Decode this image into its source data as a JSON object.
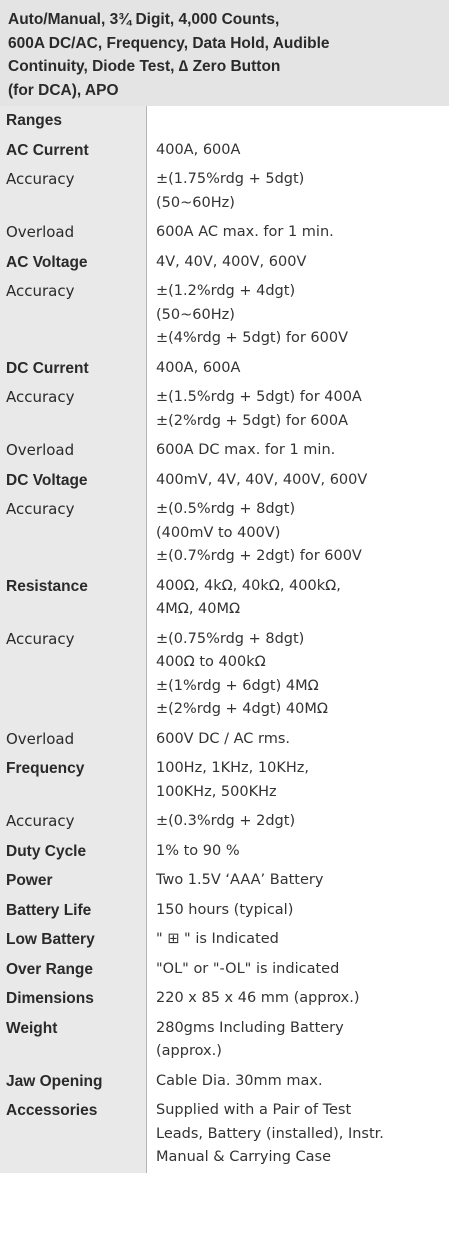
{
  "header": {
    "lines": [
      "Auto/Manual, 3¾ Digit, 4,000 Counts,",
      "600A DC/AC, Frequency, Data Hold, Audible",
      "Continuity, Diode Test, ∆ Zero Button",
      "(for DCA), APO"
    ]
  },
  "ranges": "Ranges",
  "sections": [
    {
      "title": "AC Current",
      "lines": [
        "400A, 600A"
      ],
      "sub": [
        {
          "label": "Accuracy",
          "lines": [
            "±(1.75%rdg + 5dgt)",
            "(50~60Hz)"
          ]
        },
        {
          "label": "Overload",
          "lines": [
            "600A AC max. for 1 min."
          ]
        }
      ]
    },
    {
      "title": "AC Voltage",
      "lines": [
        "4V, 40V, 400V, 600V"
      ],
      "sub": [
        {
          "label": "Accuracy",
          "lines": [
            "±(1.2%rdg + 4dgt)",
            "(50~60Hz)",
            "±(4%rdg + 5dgt) for 600V"
          ]
        }
      ]
    },
    {
      "title": "DC Current",
      "lines": [
        "400A, 600A"
      ],
      "sub": [
        {
          "label": "Accuracy",
          "lines": [
            "±(1.5%rdg + 5dgt) for 400A",
            "±(2%rdg + 5dgt) for 600A"
          ]
        },
        {
          "label": "Overload",
          "lines": [
            "600A DC max. for 1 min."
          ]
        }
      ]
    },
    {
      "title": "DC Voltage",
      "lines": [
        "400mV, 4V, 40V, 400V, 600V"
      ],
      "sub": [
        {
          "label": "Accuracy",
          "lines": [
            "±(0.5%rdg + 8dgt)",
            "(400mV to 400V)",
            "±(0.7%rdg + 2dgt) for 600V"
          ]
        }
      ]
    },
    {
      "title": "Resistance",
      "lines": [
        "400Ω, 4kΩ, 40kΩ, 400kΩ,",
        "4MΩ, 40MΩ"
      ],
      "sub": [
        {
          "label": "Accuracy",
          "lines": [
            "±(0.75%rdg + 8dgt)",
            "400Ω to 400kΩ",
            "±(1%rdg + 6dgt) 4MΩ",
            "±(2%rdg + 4dgt) 40MΩ"
          ]
        },
        {
          "label": "Overload",
          "lines": [
            "600V DC / AC rms."
          ]
        }
      ]
    },
    {
      "title": "Frequency",
      "lines": [
        "100Hz, 1KHz, 10KHz,",
        "100KHz, 500KHz"
      ],
      "sub": [
        {
          "label": "Accuracy",
          "lines": [
            "±(0.3%rdg + 2dgt)"
          ]
        }
      ]
    },
    {
      "title": "Duty Cycle",
      "lines": [
        "1% to 90 %"
      ],
      "sub": []
    },
    {
      "title": "Power",
      "lines": [
        "Two 1.5V ‘AAA’ Battery"
      ],
      "sub": []
    },
    {
      "title": "Battery Life",
      "lines": [
        "150 hours (typical)"
      ],
      "sub": []
    },
    {
      "title": "Low Battery",
      "lines": [
        "\" ⊞ \" is Indicated"
      ],
      "sub": []
    },
    {
      "title": "Over Range",
      "lines": [
        "\"OL\" or \"-OL\" is indicated"
      ],
      "sub": []
    },
    {
      "title": "Dimensions",
      "lines": [
        "220 x 85 x 46 mm (approx.)"
      ],
      "sub": []
    },
    {
      "title": "Weight",
      "lines": [
        "280gms Including Battery",
        "(approx.)"
      ],
      "sub": []
    },
    {
      "title": "Jaw Opening",
      "lines": [
        "Cable Dia. 30mm max."
      ],
      "sub": []
    },
    {
      "title": "Accessories",
      "lines": [
        "Supplied with a Pair of Test",
        "Leads, Battery (installed), Instr.",
        "Manual & Carrying Case"
      ],
      "sub": []
    }
  ]
}
